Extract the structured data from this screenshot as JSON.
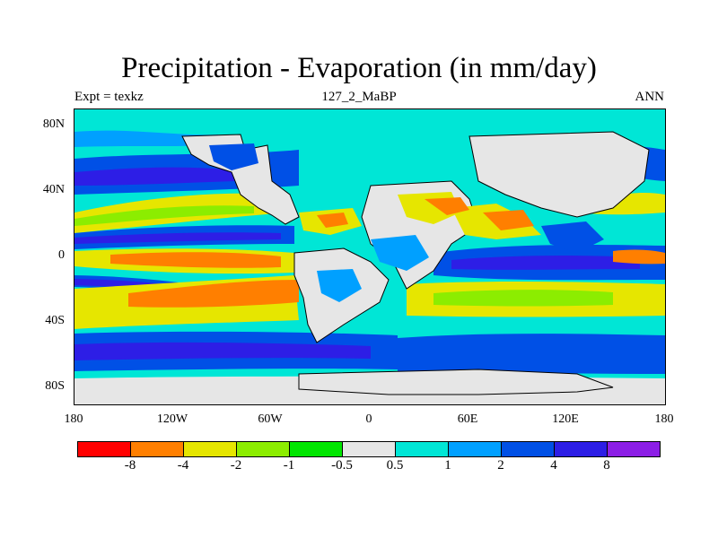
{
  "title": "Precipitation - Evaporation (in mm/day)",
  "header": {
    "left": "Expt = texkz",
    "center": "127_2_MaBP",
    "right": "ANN"
  },
  "map": {
    "y_ticks": [
      "80N",
      "40N",
      "0",
      "40S",
      "80S"
    ],
    "x_ticks": [
      "180",
      "120W",
      "60W",
      "0",
      "60E",
      "120E",
      "180"
    ]
  },
  "colorbar": {
    "colors": [
      "#ff0000",
      "#ff7f00",
      "#e6e600",
      "#8ced00",
      "#00e600",
      "#e6e6e6",
      "#00e6d6",
      "#00a0ff",
      "#0050e6",
      "#2d1ee6",
      "#8c1ee6"
    ],
    "labels": [
      "-8",
      "-4",
      "-2",
      "-1",
      "-0.5",
      "0.5",
      "1",
      "2",
      "4",
      "8"
    ]
  }
}
